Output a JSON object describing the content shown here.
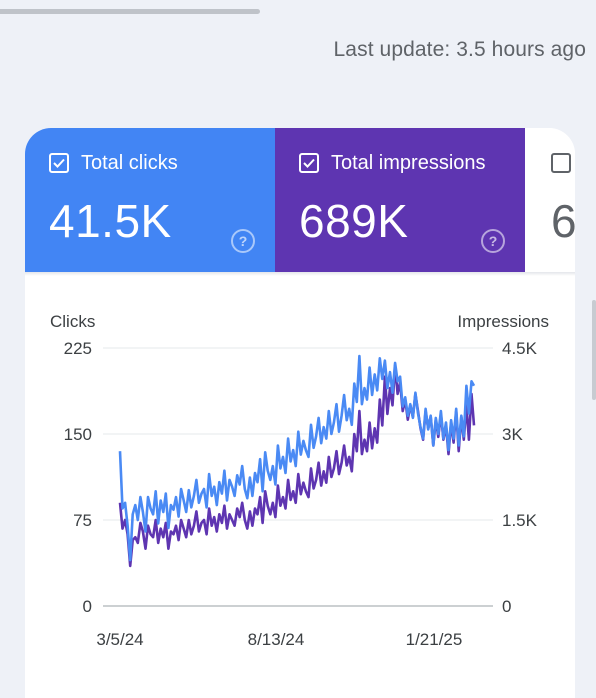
{
  "last_update": "Last update: 3.5 hours ago",
  "metrics": [
    {
      "label": "Total clicks",
      "value": "41.5K",
      "checked": true,
      "color": "#4285f4"
    },
    {
      "label": "Total impressions",
      "value": "689K",
      "checked": true,
      "color": "#5e35b1"
    },
    {
      "label": "",
      "value": "6",
      "checked": false,
      "color": "#ffffff"
    }
  ],
  "icons": {
    "checkbox": "checkbox-checked-icon",
    "help": "help-circle-icon"
  },
  "chart_data": {
    "type": "line",
    "left_axis_label": "Clicks",
    "right_axis_label": "Impressions",
    "left_ticks": [
      "0",
      "75",
      "150",
      "225"
    ],
    "right_ticks": [
      "0",
      "1.5K",
      "3K",
      "4.5K"
    ],
    "ylim_left": [
      0,
      225
    ],
    "ylim_right": [
      0,
      4500
    ],
    "x_ticks": [
      "3/5/24",
      "8/13/24",
      "1/21/25"
    ],
    "grid": true,
    "series": [
      {
        "name": "Total impressions",
        "axis": "right",
        "color": "#5e35b1",
        "values": [
          1800,
          1350,
          1500,
          1250,
          700,
          1150,
          1200,
          1100,
          1450,
          1300,
          1000,
          1400,
          1250,
          1200,
          1500,
          1100,
          1350,
          1200,
          1450,
          1000,
          1300,
          1250,
          1400,
          1150,
          1500,
          1350,
          1200,
          1500,
          1250,
          1400,
          1650,
          1300,
          1450,
          1500,
          1250,
          1700,
          1400,
          1550,
          1300,
          1600,
          1450,
          1750,
          1350,
          1600,
          1500,
          1400,
          1700,
          1550,
          1800,
          1500,
          1350,
          1650,
          1400,
          1700,
          1600,
          1900,
          1450,
          2000,
          1750,
          1600,
          1800,
          1550,
          2100,
          1750,
          1900,
          1700,
          2200,
          1850,
          2000,
          1800,
          2300,
          1950,
          2150,
          2000,
          1900,
          2400,
          2050,
          2200,
          2500,
          2100,
          2350,
          2150,
          2600,
          2250,
          2400,
          2700,
          2300,
          2500,
          2800,
          2450,
          2600,
          2350,
          3000,
          2700,
          3400,
          2650,
          2900,
          2700,
          3200,
          2750,
          3100,
          2850,
          3600,
          3150,
          4000,
          3350,
          3800,
          3500,
          4200,
          3700,
          3900,
          3400,
          3600,
          3250,
          3500,
          3300,
          3700,
          3400,
          3100,
          2900,
          3400,
          3100,
          3300,
          2800,
          3250,
          2950,
          3350,
          2900,
          3150,
          2650,
          3200,
          2850,
          3400,
          2700,
          3300,
          2900,
          3500,
          2900,
          3700,
          3150
        ]
      },
      {
        "name": "Total clicks",
        "axis": "left",
        "color": "#4a8af4",
        "values": [
          135,
          85,
          90,
          70,
          40,
          80,
          88,
          75,
          95,
          82,
          65,
          95,
          85,
          80,
          100,
          72,
          92,
          82,
          98,
          68,
          88,
          84,
          95,
          78,
          102,
          92,
          82,
          101,
          86,
          96,
          110,
          90,
          98,
          102,
          86,
          115,
          96,
          104,
          88,
          108,
          98,
          118,
          92,
          110,
          104,
          96,
          114,
          106,
          122,
          102,
          94,
          112,
          96,
          116,
          108,
          128,
          100,
          134,
          118,
          110,
          122,
          106,
          140,
          120,
          130,
          116,
          146,
          126,
          136,
          122,
          152,
          132,
          144,
          136,
          130,
          158,
          138,
          148,
          164,
          142,
          156,
          146,
          170,
          150,
          160,
          176,
          152,
          166,
          184,
          162,
          172,
          158,
          194,
          178,
          218,
          176,
          190,
          180,
          208,
          184,
          202,
          188,
          216,
          198,
          214,
          190,
          204,
          186,
          212,
          196,
          200,
          174,
          182,
          166,
          176,
          164,
          186,
          168,
          156,
          146,
          172,
          154,
          166,
          140,
          164,
          150,
          170,
          146,
          160,
          136,
          162,
          146,
          172,
          140,
          166,
          148,
          192,
          168,
          196,
          192
        ]
      }
    ]
  }
}
